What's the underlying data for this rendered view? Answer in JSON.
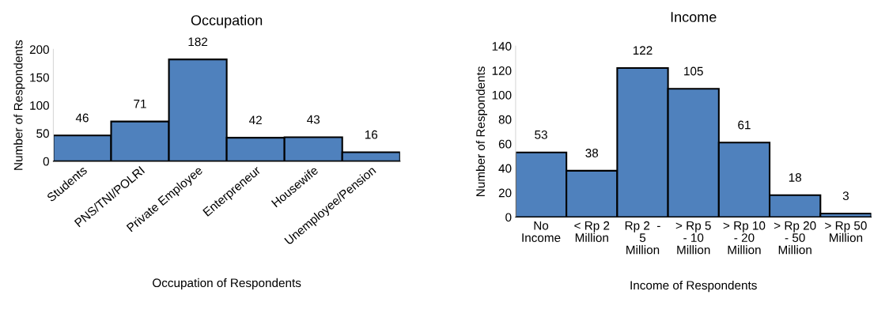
{
  "chart_data": [
    {
      "type": "bar",
      "title": "Occupation",
      "xlabel": "Occupation of Respondents",
      "ylabel": "Number of Respondents",
      "categories": [
        "Students",
        "PNS/TNI/POLRI",
        "Private Employee",
        "Enterpreneur",
        "Housewife",
        "Unemployee/Pension"
      ],
      "values": [
        46,
        71,
        182,
        42,
        43,
        16
      ],
      "color": "#4f81bd",
      "ylim": [
        0,
        200
      ],
      "yticks": [
        0,
        50,
        100,
        150,
        200
      ],
      "grid": false,
      "data_labels": true
    },
    {
      "type": "bar",
      "title": "Income",
      "xlabel": "Income of Respondents",
      "ylabel": "Number of Respondents",
      "categories": [
        "No\nIncome",
        "< Rp 2\nMillion",
        "Rp 2  -\n5\nMillion",
        "> Rp 5\n- 10\nMillion",
        "> Rp 10\n- 20\nMillion",
        "> Rp 20\n- 50\nMillion",
        "> Rp 50\nMillion"
      ],
      "values": [
        53,
        38,
        122,
        105,
        61,
        18,
        3
      ],
      "color": "#4f81bd",
      "ylim": [
        0,
        140
      ],
      "yticks": [
        0,
        20,
        40,
        60,
        80,
        100,
        120,
        140
      ],
      "grid": false,
      "data_labels": true
    }
  ]
}
